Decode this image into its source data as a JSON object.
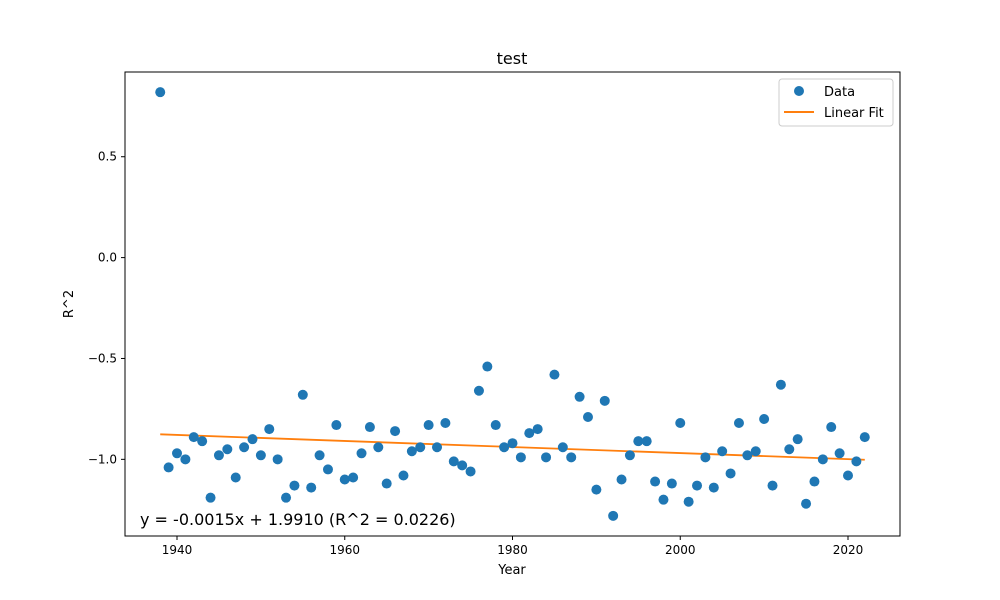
{
  "chart_data": {
    "type": "scatter",
    "title": "test",
    "xlabel": "Year",
    "ylabel": "R^2",
    "xlim": [
      1933.8,
      2026.2
    ],
    "ylim": [
      -1.38,
      0.92
    ],
    "xticks": [
      1940,
      1960,
      1980,
      2000,
      2020
    ],
    "yticks": [
      -1.0,
      -0.5,
      0.0,
      0.5
    ],
    "xtick_labels": [
      "1940",
      "1960",
      "1980",
      "2000",
      "2020"
    ],
    "ytick_labels": [
      "−1.0",
      "−0.5",
      "0.0",
      "0.5"
    ],
    "grid": false,
    "legend_position": "upper right",
    "legend": [
      "Data",
      "Linear Fit"
    ],
    "annotation": "y = -0.0015x + 1.9910 (R^2 = 0.0226)",
    "series": [
      {
        "name": "Data",
        "kind": "scatter",
        "color": "#1f77b4",
        "points": [
          [
            1938,
            0.82
          ],
          [
            1939,
            -1.04
          ],
          [
            1940,
            -0.97
          ],
          [
            1941,
            -1.0
          ],
          [
            1942,
            -0.89
          ],
          [
            1943,
            -0.91
          ],
          [
            1944,
            -1.19
          ],
          [
            1945,
            -0.98
          ],
          [
            1946,
            -0.95
          ],
          [
            1947,
            -1.09
          ],
          [
            1948,
            -0.94
          ],
          [
            1949,
            -0.9
          ],
          [
            1950,
            -0.98
          ],
          [
            1951,
            -0.85
          ],
          [
            1952,
            -1.0
          ],
          [
            1953,
            -1.19
          ],
          [
            1954,
            -1.13
          ],
          [
            1955,
            -0.68
          ],
          [
            1956,
            -1.14
          ],
          [
            1957,
            -0.98
          ],
          [
            1958,
            -1.05
          ],
          [
            1959,
            -0.83
          ],
          [
            1960,
            -1.1
          ],
          [
            1961,
            -1.09
          ],
          [
            1962,
            -0.97
          ],
          [
            1963,
            -0.84
          ],
          [
            1964,
            -0.94
          ],
          [
            1965,
            -1.12
          ],
          [
            1966,
            -0.86
          ],
          [
            1967,
            -1.08
          ],
          [
            1968,
            -0.96
          ],
          [
            1969,
            -0.94
          ],
          [
            1970,
            -0.83
          ],
          [
            1971,
            -0.94
          ],
          [
            1972,
            -0.82
          ],
          [
            1973,
            -1.01
          ],
          [
            1974,
            -1.03
          ],
          [
            1975,
            -1.06
          ],
          [
            1976,
            -0.66
          ],
          [
            1977,
            -0.54
          ],
          [
            1978,
            -0.83
          ],
          [
            1979,
            -0.94
          ],
          [
            1980,
            -0.92
          ],
          [
            1981,
            -0.99
          ],
          [
            1982,
            -0.87
          ],
          [
            1983,
            -0.85
          ],
          [
            1984,
            -0.99
          ],
          [
            1985,
            -0.58
          ],
          [
            1986,
            -0.94
          ],
          [
            1987,
            -0.99
          ],
          [
            1988,
            -0.69
          ],
          [
            1989,
            -0.79
          ],
          [
            1990,
            -1.15
          ],
          [
            1991,
            -0.71
          ],
          [
            1992,
            -1.28
          ],
          [
            1993,
            -1.1
          ],
          [
            1994,
            -0.98
          ],
          [
            1995,
            -0.91
          ],
          [
            1996,
            -0.91
          ],
          [
            1997,
            -1.11
          ],
          [
            1998,
            -1.2
          ],
          [
            1999,
            -1.12
          ],
          [
            2000,
            -0.82
          ],
          [
            2001,
            -1.21
          ],
          [
            2002,
            -1.13
          ],
          [
            2003,
            -0.99
          ],
          [
            2004,
            -1.14
          ],
          [
            2005,
            -0.96
          ],
          [
            2006,
            -1.07
          ],
          [
            2007,
            -0.82
          ],
          [
            2008,
            -0.98
          ],
          [
            2009,
            -0.96
          ],
          [
            2010,
            -0.8
          ],
          [
            2011,
            -1.13
          ],
          [
            2012,
            -0.63
          ],
          [
            2013,
            -0.95
          ],
          [
            2014,
            -0.9
          ],
          [
            2015,
            -1.22
          ],
          [
            2016,
            -1.11
          ],
          [
            2017,
            -1.0
          ],
          [
            2018,
            -0.84
          ],
          [
            2019,
            -0.97
          ],
          [
            2020,
            -1.08
          ],
          [
            2021,
            -1.01
          ],
          [
            2022,
            -0.89
          ]
        ]
      },
      {
        "name": "Linear Fit",
        "kind": "line",
        "color": "#ff7f0e",
        "x": [
          1938,
          2022
        ],
        "y": [
          -0.876,
          -1.002
        ]
      }
    ]
  }
}
